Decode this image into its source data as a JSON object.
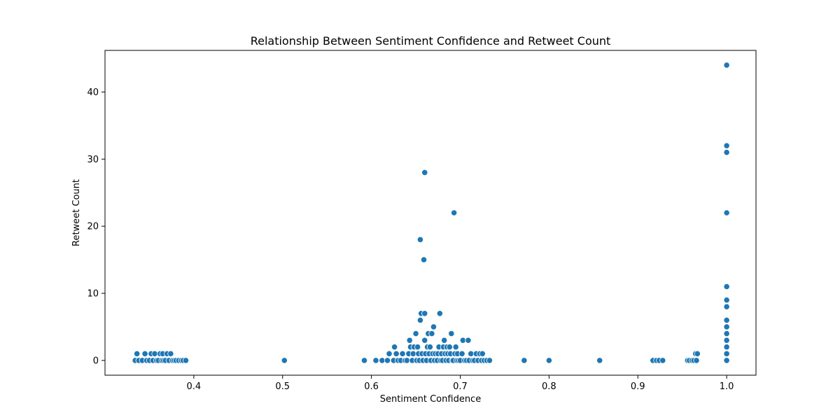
{
  "chart_data": {
    "type": "scatter",
    "title": "Relationship Between Sentiment Confidence and Retweet Count",
    "xlabel": "Sentiment Confidence",
    "ylabel": "Retweet Count",
    "xlim": [
      0.3,
      1.033
    ],
    "ylim": [
      -2.2,
      46.2
    ],
    "xticks": [
      0.4,
      0.5,
      0.6,
      0.7,
      0.8,
      0.9,
      1.0
    ],
    "xtick_labels": [
      "0.4",
      "0.5",
      "0.6",
      "0.7",
      "0.8",
      "0.9",
      "1.0"
    ],
    "yticks": [
      0,
      10,
      20,
      30,
      40
    ],
    "ytick_labels": [
      "0",
      "10",
      "20",
      "30",
      "40"
    ],
    "grid": false,
    "marker_color": "#1f77b4",
    "points": [
      [
        0.334,
        0
      ],
      [
        0.336,
        1
      ],
      [
        0.338,
        0
      ],
      [
        0.342,
        0
      ],
      [
        0.345,
        1
      ],
      [
        0.347,
        0
      ],
      [
        0.35,
        0
      ],
      [
        0.352,
        1
      ],
      [
        0.354,
        0
      ],
      [
        0.356,
        1
      ],
      [
        0.358,
        0
      ],
      [
        0.36,
        0
      ],
      [
        0.362,
        1
      ],
      [
        0.364,
        0
      ],
      [
        0.365,
        1
      ],
      [
        0.366,
        0
      ],
      [
        0.368,
        0
      ],
      [
        0.37,
        1
      ],
      [
        0.372,
        0
      ],
      [
        0.374,
        1
      ],
      [
        0.376,
        0
      ],
      [
        0.378,
        0
      ],
      [
        0.38,
        0
      ],
      [
        0.383,
        0
      ],
      [
        0.386,
        0
      ],
      [
        0.388,
        0
      ],
      [
        0.391,
        0
      ],
      [
        0.502,
        0
      ],
      [
        0.592,
        0
      ],
      [
        0.605,
        0
      ],
      [
        0.612,
        0
      ],
      [
        0.618,
        0
      ],
      [
        0.62,
        1
      ],
      [
        0.625,
        0
      ],
      [
        0.626,
        2
      ],
      [
        0.628,
        1
      ],
      [
        0.63,
        0
      ],
      [
        0.633,
        0
      ],
      [
        0.635,
        1
      ],
      [
        0.638,
        0
      ],
      [
        0.64,
        0
      ],
      [
        0.642,
        1
      ],
      [
        0.643,
        3
      ],
      [
        0.644,
        2
      ],
      [
        0.646,
        0
      ],
      [
        0.647,
        1
      ],
      [
        0.648,
        2
      ],
      [
        0.65,
        4
      ],
      [
        0.651,
        0
      ],
      [
        0.652,
        2
      ],
      [
        0.653,
        1
      ],
      [
        0.654,
        0
      ],
      [
        0.655,
        6
      ],
      [
        0.655,
        18
      ],
      [
        0.656,
        7
      ],
      [
        0.657,
        1
      ],
      [
        0.658,
        0
      ],
      [
        0.659,
        15
      ],
      [
        0.66,
        7
      ],
      [
        0.66,
        28
      ],
      [
        0.66,
        3
      ],
      [
        0.661,
        1
      ],
      [
        0.662,
        0
      ],
      [
        0.663,
        2
      ],
      [
        0.664,
        4
      ],
      [
        0.665,
        1
      ],
      [
        0.666,
        2
      ],
      [
        0.667,
        0
      ],
      [
        0.668,
        4
      ],
      [
        0.669,
        1
      ],
      [
        0.67,
        5
      ],
      [
        0.671,
        0
      ],
      [
        0.672,
        1
      ],
      [
        0.674,
        0
      ],
      [
        0.675,
        1
      ],
      [
        0.676,
        2
      ],
      [
        0.677,
        7
      ],
      [
        0.678,
        0
      ],
      [
        0.679,
        1
      ],
      [
        0.68,
        0
      ],
      [
        0.681,
        2
      ],
      [
        0.682,
        3
      ],
      [
        0.683,
        1
      ],
      [
        0.684,
        0
      ],
      [
        0.685,
        2
      ],
      [
        0.686,
        1
      ],
      [
        0.687,
        0
      ],
      [
        0.688,
        2
      ],
      [
        0.689,
        1
      ],
      [
        0.69,
        4
      ],
      [
        0.691,
        0
      ],
      [
        0.692,
        0
      ],
      [
        0.693,
        22
      ],
      [
        0.694,
        1
      ],
      [
        0.695,
        2
      ],
      [
        0.696,
        0
      ],
      [
        0.697,
        1
      ],
      [
        0.698,
        0
      ],
      [
        0.7,
        0
      ],
      [
        0.702,
        1
      ],
      [
        0.703,
        3
      ],
      [
        0.705,
        0
      ],
      [
        0.707,
        0
      ],
      [
        0.709,
        3
      ],
      [
        0.71,
        0
      ],
      [
        0.712,
        1
      ],
      [
        0.714,
        0
      ],
      [
        0.716,
        0
      ],
      [
        0.718,
        1
      ],
      [
        0.72,
        0
      ],
      [
        0.722,
        1
      ],
      [
        0.724,
        0
      ],
      [
        0.725,
        1
      ],
      [
        0.727,
        0
      ],
      [
        0.73,
        0
      ],
      [
        0.733,
        0
      ],
      [
        0.772,
        0
      ],
      [
        0.8,
        0
      ],
      [
        0.857,
        0
      ],
      [
        0.917,
        0
      ],
      [
        0.921,
        0
      ],
      [
        0.924,
        0
      ],
      [
        0.928,
        0
      ],
      [
        0.956,
        0
      ],
      [
        0.958,
        0
      ],
      [
        0.961,
        0
      ],
      [
        0.963,
        0
      ],
      [
        0.965,
        1
      ],
      [
        0.966,
        0
      ],
      [
        0.967,
        1
      ],
      [
        1.0,
        0
      ],
      [
        1.0,
        1
      ],
      [
        1.0,
        2
      ],
      [
        1.0,
        3
      ],
      [
        1.0,
        4
      ],
      [
        1.0,
        5
      ],
      [
        1.0,
        6
      ],
      [
        1.0,
        8
      ],
      [
        1.0,
        9
      ],
      [
        1.0,
        11
      ],
      [
        1.0,
        22
      ],
      [
        1.0,
        31
      ],
      [
        1.0,
        32
      ],
      [
        1.0,
        44
      ]
    ]
  }
}
